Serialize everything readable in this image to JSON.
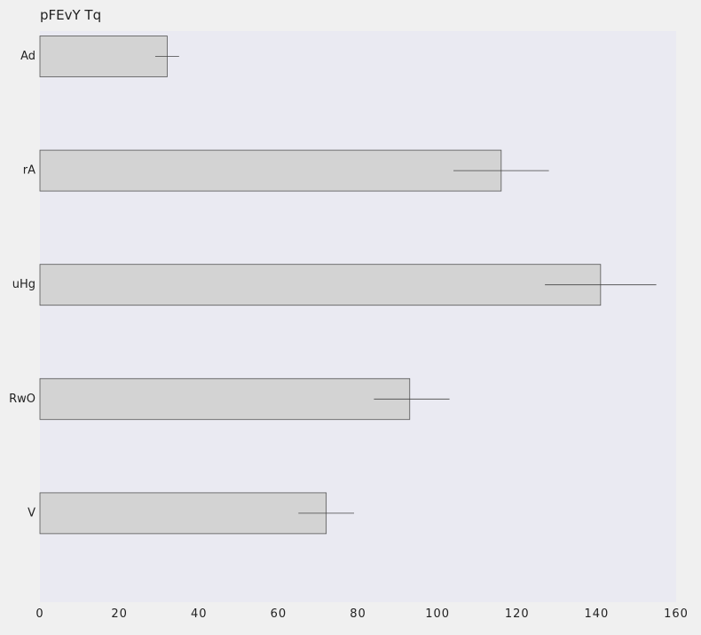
{
  "chart_data": {
    "type": "bar",
    "orientation": "horizontal",
    "title": "pFEvY Tq",
    "xlabel": "",
    "ylabel": "",
    "categories": [
      "Ad",
      "rA",
      "uHg",
      "RwO",
      "V"
    ],
    "values": [
      32,
      116,
      141,
      93,
      72
    ],
    "error_low": [
      29,
      104,
      127,
      84,
      65
    ],
    "error_high": [
      35,
      128,
      155,
      103,
      79
    ],
    "xlim": [
      0,
      160
    ],
    "xticks": [
      "0",
      "20",
      "40",
      "60",
      "80",
      "100",
      "120",
      "140",
      "160"
    ],
    "grid": false,
    "legend": "none",
    "colors": {
      "plot_background": "#eaeaf2",
      "page_background": "#f0f0f0",
      "bar_fill": "#d3d3d3",
      "bar_stroke": "#555555",
      "error_bar": "#444444",
      "text": "#222222"
    }
  }
}
